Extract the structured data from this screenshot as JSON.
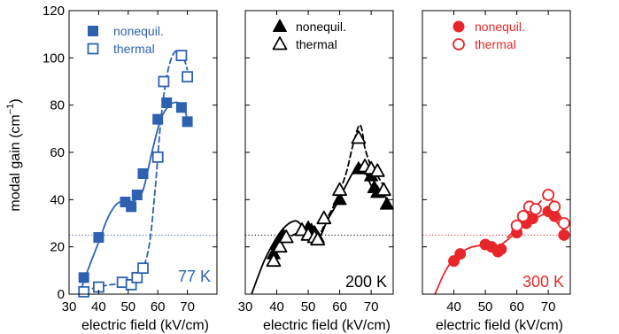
{
  "y_axis_label_main": "modal gain (cm",
  "y_axis_label_sup": "−1",
  "y_axis_label_close": ")",
  "chart_data": [
    {
      "type": "scatter",
      "temperature_label": "77 K",
      "color": "#2e62b0",
      "xlabel": "electric field (kV/cm)",
      "xlim": [
        30,
        80
      ],
      "ylim": [
        0,
        120
      ],
      "xticks": [
        30,
        40,
        50,
        60,
        70
      ],
      "yticks": [
        0,
        20,
        40,
        60,
        80,
        100,
        120
      ],
      "threshold_y": 25,
      "marker": "square",
      "legend": [
        "nonequil.",
        "thermal"
      ],
      "series": [
        {
          "name": "nonequil.",
          "filled": true,
          "points": [
            [
              35,
              7
            ],
            [
              40,
              24
            ],
            [
              49,
              39
            ],
            [
              51,
              37
            ],
            [
              53,
              42
            ],
            [
              55,
              51
            ],
            [
              60,
              74
            ],
            [
              63,
              81
            ],
            [
              68,
              79
            ],
            [
              70,
              73
            ]
          ],
          "fit": [
            [
              33.5,
              0
            ],
            [
              36,
              9
            ],
            [
              40,
              22
            ],
            [
              43,
              32
            ],
            [
              46,
              38
            ],
            [
              49,
              39.5
            ],
            [
              52,
              39.5
            ],
            [
              55,
              44
            ],
            [
              58,
              60
            ],
            [
              61,
              74
            ],
            [
              64,
              80
            ],
            [
              67,
              81
            ],
            [
              69,
              78
            ],
            [
              70,
              74
            ]
          ]
        },
        {
          "name": "thermal",
          "filled": false,
          "points": [
            [
              35,
              1
            ],
            [
              40,
              3
            ],
            [
              48,
              5
            ],
            [
              51,
              4
            ],
            [
              53,
              7
            ],
            [
              55,
              11
            ],
            [
              60,
              58
            ],
            [
              62,
              90
            ],
            [
              68,
              101
            ],
            [
              70,
              92
            ]
          ],
          "fit": [
            [
              35,
              1.5
            ],
            [
              40,
              3
            ],
            [
              44,
              4
            ],
            [
              48,
              4.5
            ],
            [
              51,
              5
            ],
            [
              54,
              8
            ],
            [
              57,
              20
            ],
            [
              59,
              43
            ],
            [
              61,
              73
            ],
            [
              63,
              92
            ],
            [
              65,
              101
            ],
            [
              67,
              103
            ],
            [
              69,
              99
            ],
            [
              70,
              95
            ]
          ]
        }
      ]
    },
    {
      "type": "scatter",
      "temperature_label": "200 K",
      "color": "#000000",
      "xlabel": "electric field (kV/cm)",
      "xlim": [
        30,
        77
      ],
      "ylim": [
        0,
        120
      ],
      "xticks": [
        30,
        40,
        50,
        60,
        70
      ],
      "yticks": [
        0,
        20,
        40,
        60,
        80,
        100,
        120
      ],
      "threshold_y": 25,
      "marker": "triangle",
      "legend": [
        "nonequil.",
        "thermal"
      ],
      "series": [
        {
          "name": "nonequil.",
          "filled": true,
          "points": [
            [
              39,
              17
            ],
            [
              40,
              21
            ],
            [
              42,
              25
            ],
            [
              50,
              28
            ],
            [
              51,
              27
            ],
            [
              52,
              26
            ],
            [
              53,
              24
            ],
            [
              55,
              32
            ],
            [
              60,
              40
            ],
            [
              66,
              53
            ],
            [
              68,
              53
            ],
            [
              70,
              50
            ],
            [
              71,
              45
            ],
            [
              72,
              43
            ],
            [
              75,
              38
            ]
          ],
          "fit": [
            [
              32,
              0
            ],
            [
              36,
              14
            ],
            [
              40,
              24
            ],
            [
              43,
              29
            ],
            [
              46,
              31
            ],
            [
              48,
              29
            ],
            [
              50,
              26
            ],
            [
              52,
              24
            ],
            [
              54,
              25
            ],
            [
              56,
              31
            ],
            [
              59,
              38
            ],
            [
              62,
              46
            ],
            [
              64,
              51
            ],
            [
              66,
              55
            ],
            [
              68,
              52
            ],
            [
              70,
              46
            ],
            [
              72,
              44
            ],
            [
              74,
              42
            ],
            [
              75,
              40
            ]
          ]
        },
        {
          "name": "thermal",
          "filled": false,
          "points": [
            [
              39,
              14
            ],
            [
              41,
              20
            ],
            [
              43,
              24
            ],
            [
              48,
              27
            ],
            [
              50,
              25
            ],
            [
              52,
              24
            ],
            [
              53,
              23
            ],
            [
              55,
              32
            ],
            [
              60,
              44
            ],
            [
              66,
              66
            ],
            [
              68,
              54
            ],
            [
              70,
              53
            ],
            [
              72,
              52
            ],
            [
              74,
              44
            ]
          ],
          "fit": [
            [
              38,
              13
            ],
            [
              41,
              20
            ],
            [
              44,
              24
            ],
            [
              47,
              26
            ],
            [
              50,
              26
            ],
            [
              53,
              24
            ],
            [
              56,
              32
            ],
            [
              59,
              40
            ],
            [
              62,
              51
            ],
            [
              64,
              62
            ],
            [
              66,
              71
            ],
            [
              67,
              70
            ],
            [
              68,
              62
            ],
            [
              70,
              54
            ],
            [
              72,
              50
            ],
            [
              74,
              46
            ],
            [
              75,
              45
            ]
          ]
        }
      ]
    },
    {
      "type": "scatter",
      "temperature_label": "300 K",
      "color": "#e8262a",
      "xlabel": "electric field (kV/cm)",
      "xlim": [
        30,
        77
      ],
      "ylim": [
        0,
        120
      ],
      "xticks": [
        40,
        50,
        60,
        70
      ],
      "yticks": [
        0,
        20,
        40,
        60,
        80,
        100,
        120
      ],
      "threshold_y": 25,
      "marker": "circle",
      "legend": [
        "nonequil.",
        "thermal"
      ],
      "series": [
        {
          "name": "nonequil.",
          "filled": true,
          "points": [
            [
              40,
              14
            ],
            [
              42,
              17
            ],
            [
              50,
              21
            ],
            [
              52,
              20
            ],
            [
              54,
              18
            ],
            [
              55,
              19
            ],
            [
              60,
              26
            ],
            [
              63,
              30
            ],
            [
              65,
              32
            ],
            [
              70,
              35
            ],
            [
              72,
              33
            ],
            [
              75,
              25
            ]
          ],
          "fit": [
            [
              34,
              0
            ],
            [
              37,
              9
            ],
            [
              40,
              15
            ],
            [
              44,
              19
            ],
            [
              48,
              20.5
            ],
            [
              52,
              20
            ],
            [
              55,
              21
            ],
            [
              58,
              24
            ],
            [
              62,
              29
            ],
            [
              66,
              32
            ],
            [
              69,
              34
            ],
            [
              71,
              33
            ],
            [
              73,
              30
            ],
            [
              75,
              27
            ]
          ]
        },
        {
          "name": "thermal",
          "filled": false,
          "points": [
            [
              60,
              29
            ],
            [
              62,
              33
            ],
            [
              64,
              37
            ],
            [
              66,
              36
            ],
            [
              70,
              42
            ],
            [
              72,
              37
            ],
            [
              75,
              30
            ]
          ],
          "fit": [
            [
              57,
              24
            ],
            [
              60,
              28
            ],
            [
              63,
              33
            ],
            [
              66,
              37
            ],
            [
              69,
              41
            ],
            [
              71,
              40
            ],
            [
              73,
              35
            ],
            [
              75,
              30
            ]
          ]
        }
      ]
    }
  ]
}
